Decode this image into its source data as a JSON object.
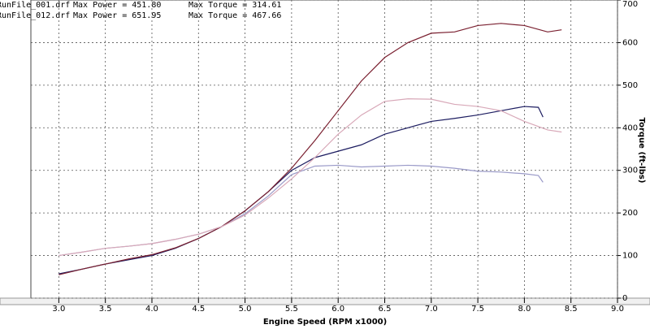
{
  "chart_data": {
    "type": "line",
    "legend": [
      {
        "file": "RunFile_001.drf",
        "power": "Max Power = 451.80",
        "torque": "Max Torque = 314.61"
      },
      {
        "file": "RunFile_012.drf",
        "power": "Max Power = 651.95",
        "torque": "Max Torque = 467.66"
      }
    ],
    "x_label": "Engine Speed (RPM x1000)",
    "y_label": "Torque (ft-lbs)",
    "xlim": [
      2.7,
      9.0
    ],
    "xticks": [
      {
        "value": 3.0,
        "label": "3.0"
      },
      {
        "value": 3.5,
        "label": "3.5"
      },
      {
        "value": 4.0,
        "label": "4.0"
      },
      {
        "value": 4.5,
        "label": "4.5"
      },
      {
        "value": 5.0,
        "label": "5.0"
      },
      {
        "value": 5.5,
        "label": "5.5"
      },
      {
        "value": 6.0,
        "label": "6.0"
      },
      {
        "value": 6.5,
        "label": "6.5"
      },
      {
        "value": 7.0,
        "label": "7.0"
      },
      {
        "value": 7.5,
        "label": "7.5"
      },
      {
        "value": 8.0,
        "label": "8.0"
      },
      {
        "value": 8.5,
        "label": "8.5"
      },
      {
        "value": 9.0,
        "label": "9.0"
      }
    ],
    "ylim": [
      0,
      700
    ],
    "yticks": [
      0,
      100,
      200,
      300,
      400,
      500,
      600,
      700
    ],
    "grid": true,
    "series": [
      {
        "color": "#1c1c60",
        "x": [
          3.0,
          3.25,
          3.5,
          3.75,
          4.0,
          4.25,
          4.5,
          4.75,
          5.0,
          5.25,
          5.5,
          5.75,
          6.0,
          6.25,
          6.5,
          6.75,
          7.0,
          7.25,
          7.5,
          7.75,
          8.0,
          8.15,
          8.2
        ],
        "values": [
          57,
          68,
          80,
          90,
          100,
          117,
          140,
          168,
          205,
          250,
          300,
          330,
          345,
          360,
          385,
          400,
          415,
          422,
          430,
          440,
          450,
          448,
          425
        ]
      },
      {
        "color": "#9a9ac8",
        "x": [
          3.0,
          3.25,
          3.5,
          3.75,
          4.0,
          4.25,
          4.5,
          4.75,
          5.0,
          5.25,
          5.5,
          5.75,
          6.0,
          6.25,
          6.5,
          6.75,
          7.0,
          7.25,
          7.5,
          7.75,
          8.0,
          8.15,
          8.2
        ],
        "values": [
          100,
          108,
          117,
          122,
          128,
          138,
          150,
          168,
          198,
          240,
          290,
          310,
          312,
          308,
          310,
          312,
          310,
          305,
          298,
          296,
          292,
          288,
          272
        ]
      },
      {
        "color": "#7a2030",
        "x": [
          3.0,
          3.25,
          3.5,
          3.75,
          4.0,
          4.25,
          4.5,
          4.75,
          5.0,
          5.25,
          5.5,
          5.75,
          6.0,
          6.25,
          6.5,
          6.75,
          7.0,
          7.25,
          7.5,
          7.75,
          8.0,
          8.25,
          8.4
        ],
        "values": [
          55,
          68,
          80,
          92,
          102,
          118,
          140,
          168,
          205,
          250,
          305,
          370,
          440,
          510,
          565,
          600,
          622,
          625,
          640,
          645,
          640,
          625,
          630
        ]
      },
      {
        "color": "#d8a8b8",
        "x": [
          3.0,
          3.25,
          3.5,
          3.75,
          4.0,
          4.25,
          4.5,
          4.75,
          5.0,
          5.25,
          5.5,
          5.75,
          6.0,
          6.25,
          6.5,
          6.75,
          7.0,
          7.25,
          7.5,
          7.75,
          8.0,
          8.25,
          8.4
        ],
        "values": [
          100,
          108,
          117,
          122,
          128,
          138,
          150,
          168,
          195,
          235,
          280,
          330,
          385,
          430,
          462,
          468,
          467,
          455,
          450,
          440,
          415,
          395,
          390
        ]
      }
    ]
  }
}
